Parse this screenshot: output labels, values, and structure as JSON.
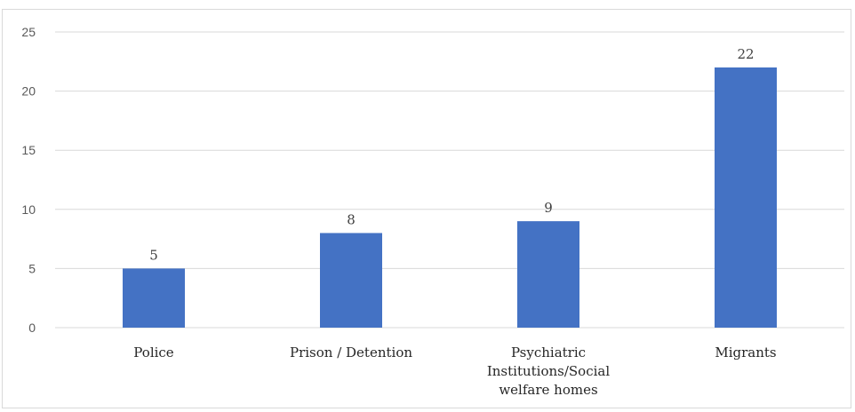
{
  "chart_data": {
    "type": "bar",
    "categories": [
      "Police",
      "Prison / Detention",
      "Psychiatric Institutions/Social welfare homes",
      "Migrants"
    ],
    "category_lines": [
      [
        "Police"
      ],
      [
        "Prison / Detention"
      ],
      [
        "Psychiatric",
        "Institutions/Social",
        "welfare homes"
      ],
      [
        "Migrants"
      ]
    ],
    "values": [
      5,
      8,
      9,
      22
    ],
    "ylim": [
      0,
      25
    ],
    "yticks": [
      0,
      5,
      10,
      15,
      20,
      25
    ],
    "title": "",
    "xlabel": "",
    "ylabel": "",
    "grid": true,
    "legend": "none",
    "bar_color": "#4472C4",
    "grid_color": "#d9d9d9"
  }
}
